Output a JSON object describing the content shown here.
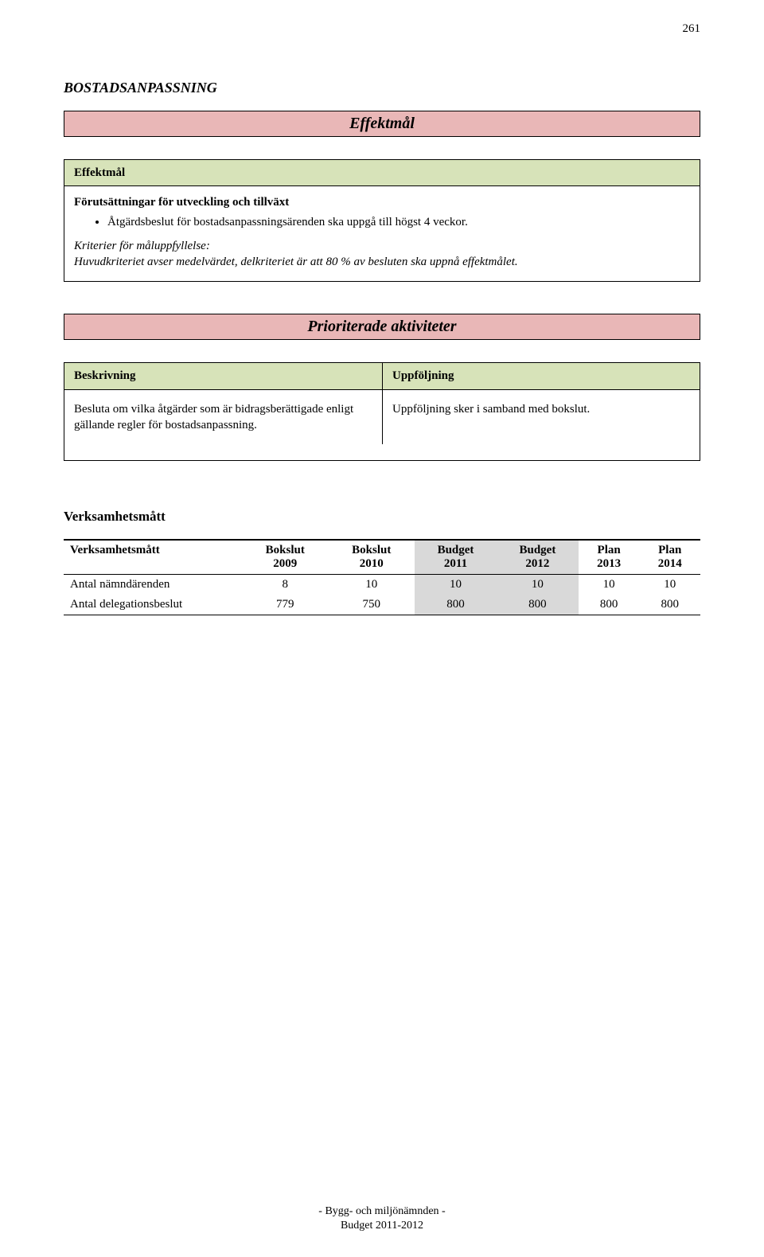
{
  "page_number": "261",
  "section_title": "BOSTADSANPASSNING",
  "banner_effektmal": "Effektmål",
  "effektmal_box": {
    "header": "Effektmål",
    "subhead": "Förutsättningar för utveckling och tillväxt",
    "bullets": [
      "Åtgärdsbeslut för bostadsanpassningsärenden ska uppgå till högst 4 veckor."
    ],
    "criteria_label": "Kriterier för måluppfyllelse:",
    "criteria_text": "Huvudkriteriet avser medelvärdet, delkriteriet är att 80 % av besluten ska uppnå effektmålet."
  },
  "banner_aktiviteter": "Prioriterade aktiviteter",
  "aktiviteter_box": {
    "col1_header": "Beskrivning",
    "col2_header": "Uppföljning",
    "col1_body": "Besluta om vilka åtgärder som är bidragsberättigade enligt gällande regler för bostadsanpassning.",
    "col2_body": "Uppföljning sker i samband med bokslut."
  },
  "vm_heading": "Verksamhetsmått",
  "table": {
    "columns": [
      {
        "label": "Verksamhetsmått",
        "year": ""
      },
      {
        "label": "Bokslut",
        "year": "2009"
      },
      {
        "label": "Bokslut",
        "year": "2010"
      },
      {
        "label": "Budget",
        "year": "2011",
        "shaded": true
      },
      {
        "label": "Budget",
        "year": "2012",
        "shaded": true
      },
      {
        "label": "Plan",
        "year": "2013"
      },
      {
        "label": "Plan",
        "year": "2014"
      }
    ],
    "rows": [
      {
        "label": "Antal nämndärenden",
        "values": [
          "8",
          "10",
          "10",
          "10",
          "10",
          "10"
        ]
      },
      {
        "label": "Antal delegationsbeslut",
        "values": [
          "779",
          "750",
          "800",
          "800",
          "800",
          "800"
        ]
      }
    ]
  },
  "footer_line1": "- Bygg- och miljönämnden -",
  "footer_line2": "Budget 2011-2012"
}
